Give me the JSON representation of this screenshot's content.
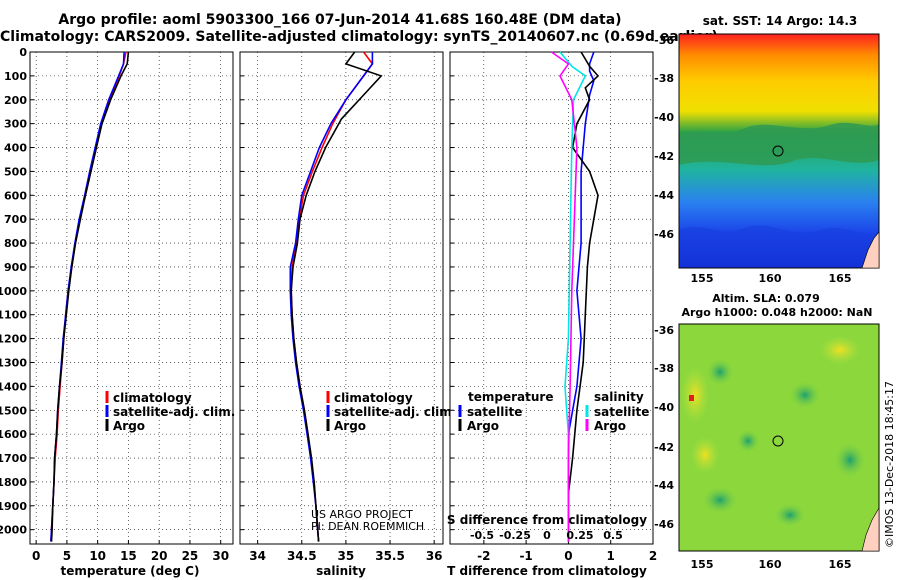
{
  "title_line1": "Argo profile: aoml 5903300_166 07-Jun-2014 41.68S 160.48E (DM data)",
  "title_line2": "Climatology: CARS2009. Satellite-adjusted climatology: synTS_20140607.nc (0.69d earlier)",
  "colors": {
    "climatology": "#ff0000",
    "satellite": "#0000ff",
    "argo": "#000000",
    "s_satellite": "#00e5e5",
    "s_argo": "#ff00ff"
  },
  "depth_axis": {
    "ticks": [
      0,
      100,
      200,
      300,
      400,
      500,
      600,
      700,
      800,
      900,
      1000,
      1100,
      1200,
      1300,
      1400,
      1500,
      1600,
      1700,
      1800,
      1900,
      2000
    ],
    "range": [
      0,
      2060
    ]
  },
  "chart_data": [
    {
      "type": "line",
      "id": "temperature",
      "xlabel": "temperature (deg C)",
      "ylabel": "depth",
      "xlim": [
        -1,
        32
      ],
      "ylim": [
        2060,
        0
      ],
      "xticks": [
        0,
        5,
        10,
        15,
        20,
        25,
        30
      ],
      "legend": {
        "placement": "bottom-right",
        "entries": [
          "climatology",
          "satellite-adj. clim.",
          "Argo"
        ]
      },
      "series": [
        {
          "name": "climatology",
          "color": "#ff0000",
          "points": [
            [
              14.6,
              0
            ],
            [
              14.2,
              50
            ],
            [
              13.5,
              100
            ],
            [
              11.9,
              200
            ],
            [
              10.6,
              300
            ],
            [
              9.8,
              400
            ],
            [
              8.9,
              500
            ],
            [
              8.0,
              600
            ],
            [
              7.1,
              700
            ],
            [
              6.4,
              800
            ],
            [
              5.8,
              900
            ],
            [
              5.2,
              1000
            ],
            [
              4.8,
              1100
            ],
            [
              4.5,
              1200
            ],
            [
              4.2,
              1300
            ],
            [
              3.9,
              1400
            ],
            [
              3.6,
              1500
            ],
            [
              3.4,
              1600
            ],
            [
              3.1,
              1700
            ],
            [
              2.9,
              1800
            ],
            [
              2.7,
              1900
            ],
            [
              2.5,
              2000
            ],
            [
              2.4,
              2050
            ]
          ]
        },
        {
          "name": "satellite-adj. clim.",
          "color": "#0000ff",
          "points": [
            [
              14.3,
              0
            ],
            [
              14.2,
              50
            ],
            [
              13.4,
              100
            ],
            [
              11.8,
              200
            ],
            [
              10.5,
              300
            ],
            [
              9.6,
              400
            ],
            [
              8.7,
              500
            ],
            [
              7.9,
              600
            ],
            [
              7.0,
              700
            ],
            [
              6.3,
              800
            ],
            [
              5.7,
              900
            ],
            [
              5.2,
              1000
            ],
            [
              4.8,
              1100
            ],
            [
              4.4,
              1200
            ],
            [
              4.1,
              1300
            ],
            [
              3.8,
              1400
            ],
            [
              3.5,
              1500
            ],
            [
              3.3,
              1600
            ],
            [
              3.0,
              1700
            ],
            [
              2.9,
              1800
            ],
            [
              2.7,
              1900
            ],
            [
              2.5,
              2000
            ],
            [
              2.4,
              2050
            ]
          ]
        },
        {
          "name": "Argo",
          "color": "#000000",
          "points": [
            [
              15.0,
              0
            ],
            [
              14.8,
              50
            ],
            [
              13.8,
              100
            ],
            [
              12.1,
              200
            ],
            [
              10.7,
              300
            ],
            [
              9.8,
              400
            ],
            [
              8.9,
              500
            ],
            [
              8.0,
              600
            ],
            [
              7.2,
              700
            ],
            [
              6.4,
              800
            ],
            [
              5.8,
              900
            ],
            [
              5.3,
              1000
            ],
            [
              4.9,
              1100
            ],
            [
              4.5,
              1200
            ],
            [
              4.2,
              1300
            ],
            [
              3.8,
              1400
            ],
            [
              3.5,
              1500
            ],
            [
              3.3,
              1600
            ],
            [
              3.0,
              1700
            ],
            [
              2.9,
              1800
            ],
            [
              2.7,
              1900
            ],
            [
              2.6,
              2000
            ],
            [
              2.5,
              2050
            ]
          ]
        }
      ]
    },
    {
      "type": "line",
      "id": "salinity",
      "xlabel": "salinity",
      "ylabel": "depth",
      "xlim": [
        33.8,
        36.1
      ],
      "ylim": [
        2060,
        0
      ],
      "xticks": [
        34,
        34.5,
        35,
        35.5,
        36
      ],
      "legend": {
        "placement": "bottom-right",
        "entries": [
          "climatology",
          "satellite-adj. clim.",
          "Argo"
        ]
      },
      "annotation": [
        "US ARGO PROJECT",
        "PI: DEAN ROEMMICH"
      ],
      "series": [
        {
          "name": "climatology",
          "color": "#ff0000",
          "points": [
            [
              35.2,
              0
            ],
            [
              35.3,
              50
            ],
            [
              35.2,
              100
            ],
            [
              35.0,
              200
            ],
            [
              34.85,
              300
            ],
            [
              34.73,
              400
            ],
            [
              34.62,
              500
            ],
            [
              34.52,
              600
            ],
            [
              34.47,
              700
            ],
            [
              34.44,
              800
            ],
            [
              34.39,
              900
            ],
            [
              34.38,
              1000
            ],
            [
              34.39,
              1100
            ],
            [
              34.41,
              1200
            ],
            [
              34.44,
              1300
            ],
            [
              34.48,
              1400
            ],
            [
              34.53,
              1500
            ],
            [
              34.57,
              1600
            ],
            [
              34.6,
              1700
            ],
            [
              34.64,
              1800
            ],
            [
              34.66,
              1900
            ],
            [
              34.68,
              2000
            ],
            [
              34.69,
              2050
            ]
          ]
        },
        {
          "name": "satellite-adj. clim.",
          "color": "#0000ff",
          "points": [
            [
              35.3,
              0
            ],
            [
              35.3,
              50
            ],
            [
              35.2,
              100
            ],
            [
              35.0,
              200
            ],
            [
              34.83,
              300
            ],
            [
              34.7,
              400
            ],
            [
              34.6,
              500
            ],
            [
              34.5,
              600
            ],
            [
              34.46,
              700
            ],
            [
              34.43,
              800
            ],
            [
              34.37,
              900
            ],
            [
              34.37,
              1000
            ],
            [
              34.38,
              1100
            ],
            [
              34.4,
              1200
            ],
            [
              34.43,
              1300
            ],
            [
              34.47,
              1400
            ],
            [
              34.52,
              1500
            ],
            [
              34.56,
              1600
            ],
            [
              34.6,
              1700
            ],
            [
              34.63,
              1800
            ],
            [
              34.66,
              1900
            ],
            [
              34.68,
              2000
            ],
            [
              34.69,
              2050
            ]
          ]
        },
        {
          "name": "Argo",
          "color": "#000000",
          "points": [
            [
              35.1,
              0
            ],
            [
              35.0,
              50
            ],
            [
              35.4,
              100
            ],
            [
              35.2,
              180
            ],
            [
              34.95,
              280
            ],
            [
              34.77,
              400
            ],
            [
              34.65,
              500
            ],
            [
              34.55,
              600
            ],
            [
              34.48,
              700
            ],
            [
              34.45,
              800
            ],
            [
              34.4,
              900
            ],
            [
              34.38,
              1000
            ],
            [
              34.39,
              1100
            ],
            [
              34.41,
              1200
            ],
            [
              34.44,
              1300
            ],
            [
              34.48,
              1400
            ],
            [
              34.53,
              1500
            ],
            [
              34.57,
              1600
            ],
            [
              34.61,
              1700
            ],
            [
              34.64,
              1800
            ],
            [
              34.66,
              1900
            ],
            [
              34.68,
              2000
            ],
            [
              34.69,
              2050
            ]
          ]
        }
      ]
    },
    {
      "type": "line",
      "id": "difference",
      "xlabel": "T difference from climatology",
      "ylabel": "depth",
      "xlim": [
        -2.8,
        2.0
      ],
      "ylim": [
        2060,
        0
      ],
      "xticks": [
        -2,
        -1,
        0,
        1,
        2
      ],
      "xlabel_top": "S difference from climatology",
      "s_ticks": [
        "-0.5",
        "-0.25",
        "0",
        "0.25",
        "0.5"
      ],
      "legend": {
        "placement": "bottom",
        "temperature_header": "temperature",
        "salinity_header": "salinity",
        "entries": [
          "satellite",
          "Argo"
        ]
      },
      "series": [
        {
          "name": "temperature satellite",
          "color": "#0000ff",
          "points": [
            [
              0.6,
              0
            ],
            [
              0.5,
              50
            ],
            [
              0.5,
              80
            ],
            [
              0.6,
              120
            ],
            [
              0.5,
              180
            ],
            [
              0.4,
              300
            ],
            [
              0.3,
              500
            ],
            [
              0.3,
              800
            ],
            [
              0.2,
              1000
            ],
            [
              0.3,
              1200
            ],
            [
              0.2,
              1400
            ],
            [
              0.0,
              1600
            ],
            [
              0.0,
              1800
            ],
            [
              0.0,
              2050
            ]
          ]
        },
        {
          "name": "temperature Argo",
          "color": "#000000",
          "points": [
            [
              0.3,
              0
            ],
            [
              0.5,
              60
            ],
            [
              0.7,
              100
            ],
            [
              0.4,
              150
            ],
            [
              0.5,
              200
            ],
            [
              0.2,
              300
            ],
            [
              0.1,
              400
            ],
            [
              0.5,
              500
            ],
            [
              0.7,
              600
            ],
            [
              0.6,
              700
            ],
            [
              0.5,
              800
            ],
            [
              0.45,
              900
            ],
            [
              0.4,
              1100
            ],
            [
              0.35,
              1300
            ],
            [
              0.2,
              1500
            ],
            [
              0.1,
              1700
            ],
            [
              0.0,
              1850
            ],
            [
              0.0,
              2050
            ]
          ]
        },
        {
          "name": "salinity satellite",
          "color": "#00e5e5",
          "points": [
            [
              -0.05,
              0
            ],
            [
              0.02,
              60
            ],
            [
              0.1,
              100
            ],
            [
              0.03,
              200
            ],
            [
              0.02,
              400
            ],
            [
              0.01,
              800
            ],
            [
              0.0,
              1200
            ],
            [
              -0.02,
              1400
            ],
            [
              0.0,
              1600
            ],
            [
              0.0,
              1800
            ],
            [
              0.0,
              2050
            ]
          ]
        },
        {
          "name": "salinity Argo",
          "color": "#ff00ff",
          "points": [
            [
              -0.1,
              0
            ],
            [
              0.0,
              50
            ],
            [
              -0.05,
              100
            ],
            [
              0.02,
              200
            ],
            [
              0.05,
              400
            ],
            [
              0.04,
              600
            ],
            [
              0.03,
              800
            ],
            [
              0.02,
              1000
            ],
            [
              0.01,
              1400
            ],
            [
              0.0,
              1700
            ],
            [
              0.0,
              2050
            ]
          ]
        }
      ]
    }
  ],
  "maps": {
    "sst": {
      "title": "sat. SST: 14 Argo: 14.3",
      "lat_ticks": [
        "-36",
        "-38",
        "-40",
        "-42",
        "-44",
        "-46"
      ],
      "lon_ticks": [
        "155",
        "160",
        "165"
      ]
    },
    "sla": {
      "title_line1": "Altim. SLA: 0.079",
      "title_line2": "Argo h1000: 0.048 h2000: NaN",
      "lat_ticks": [
        "-36",
        "-38",
        "-40",
        "-42",
        "-44",
        "-46"
      ],
      "lon_ticks": [
        "155",
        "160",
        "165"
      ]
    }
  },
  "footer": {
    "timestamp": "©IMOS 13-Dec-2018 18:45:17"
  }
}
